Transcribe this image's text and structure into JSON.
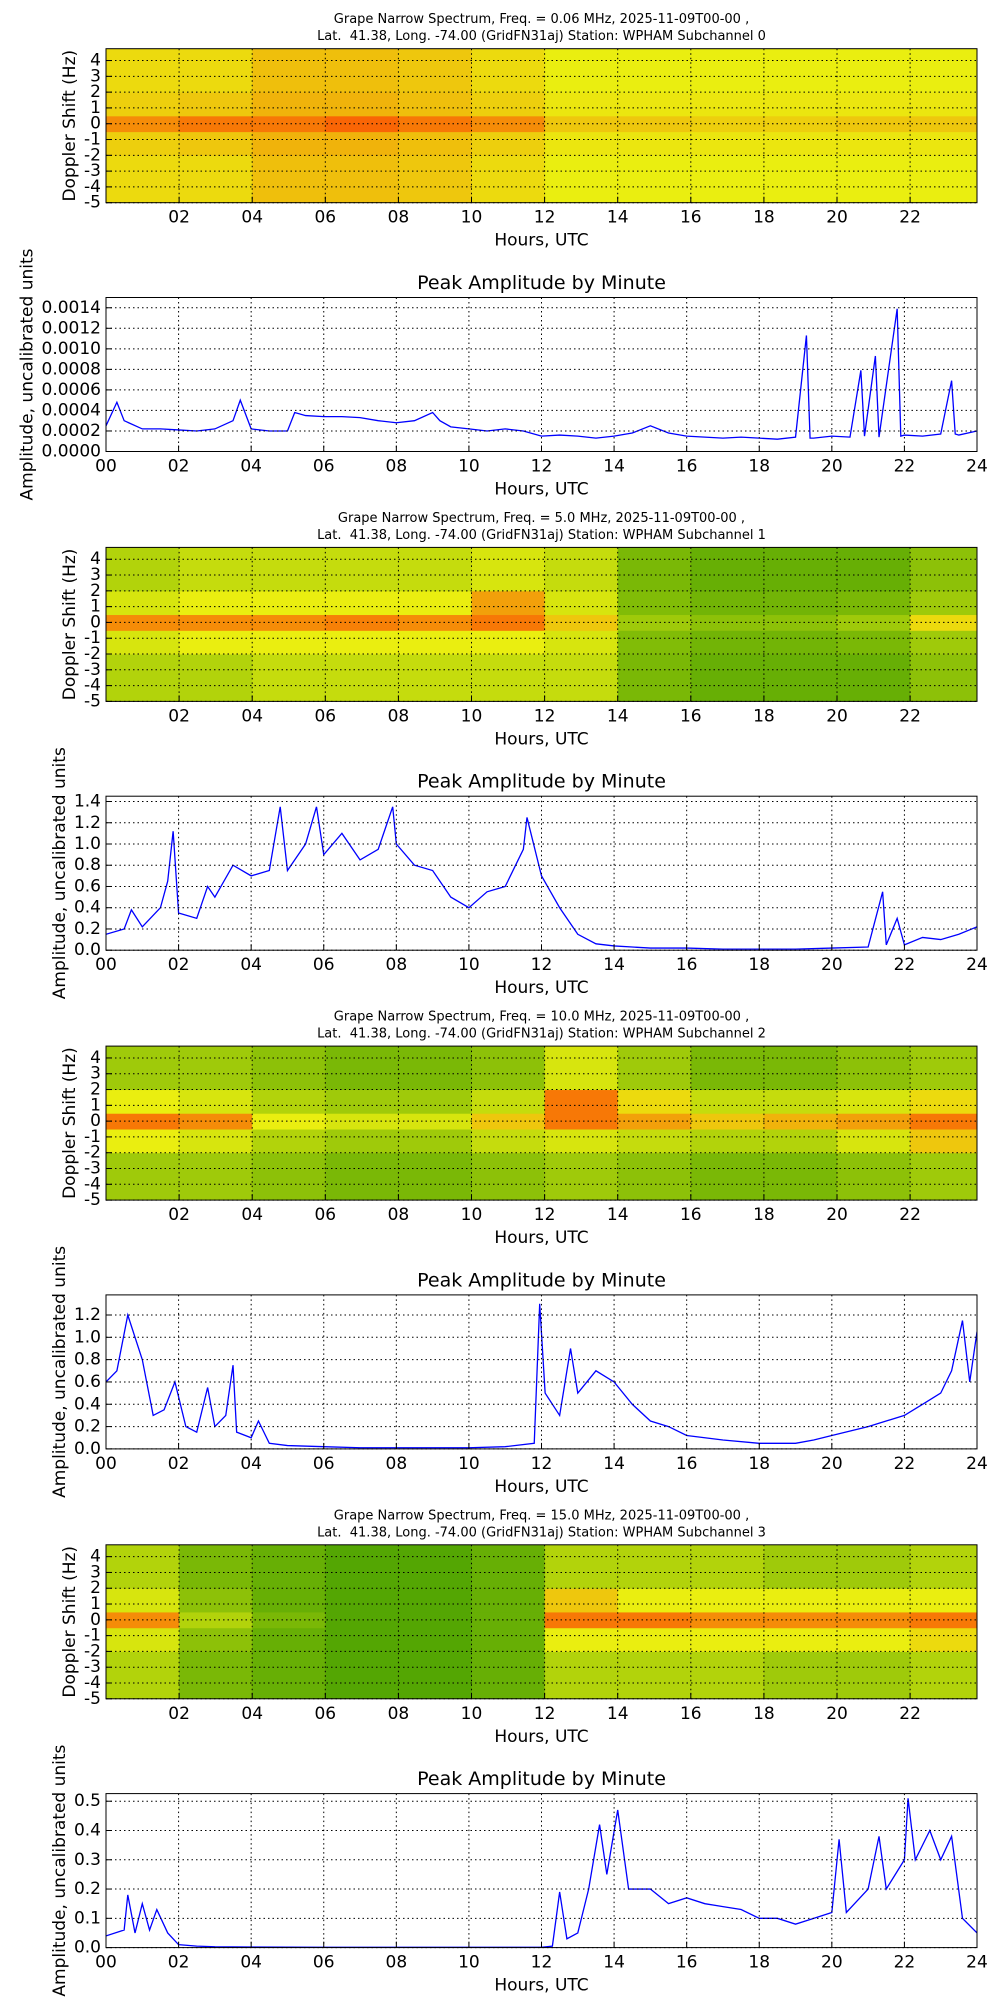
{
  "chart_data": [
    {
      "type": "heatmap",
      "title": "Grape Narrow Spectrum, Freq. = 0.06 MHz, 2025-11-09T00-00 ,",
      "subtitle": "Lat.  41.38, Long. -74.00 (GridFN31aj) Station: WPHAM Subchannel 0",
      "xlabel": "Hours, UTC",
      "ylabel": "Doppler Shift (Hz)",
      "xlim": [
        0,
        23.83
      ],
      "ylim": [
        -5,
        4.75
      ],
      "xticks": [
        {
          "value": 2,
          "label": "02"
        },
        {
          "value": 4,
          "label": "04"
        },
        {
          "value": 6,
          "label": "06"
        },
        {
          "value": 8,
          "label": "08"
        },
        10,
        12,
        14,
        16,
        18,
        20,
        22
      ],
      "yticks": [
        -5,
        -4,
        -3,
        -2,
        -1,
        0,
        1,
        2,
        3,
        4
      ],
      "grid": true,
      "colormap": [
        "#2f9400",
        "#eaee10",
        "#ff2a00"
      ],
      "x_edges": [
        0,
        2,
        4,
        6,
        8,
        10,
        12,
        14,
        16,
        18,
        20,
        22,
        23.83
      ],
      "y_edges": [
        -5,
        -2,
        -0.5,
        0.5,
        2,
        4.75
      ],
      "z": [
        [
          0.55,
          0.55,
          0.62,
          0.62,
          0.6,
          0.55,
          0.5,
          0.5,
          0.5,
          0.5,
          0.5,
          0.5
        ],
        [
          0.58,
          0.6,
          0.65,
          0.65,
          0.62,
          0.58,
          0.52,
          0.52,
          0.52,
          0.52,
          0.52,
          0.52
        ],
        [
          0.75,
          0.8,
          0.8,
          0.85,
          0.8,
          0.75,
          0.6,
          0.6,
          0.58,
          0.58,
          0.6,
          0.6
        ],
        [
          0.58,
          0.6,
          0.65,
          0.65,
          0.62,
          0.58,
          0.52,
          0.52,
          0.52,
          0.52,
          0.52,
          0.52
        ],
        [
          0.55,
          0.55,
          0.62,
          0.62,
          0.6,
          0.55,
          0.5,
          0.5,
          0.5,
          0.5,
          0.5,
          0.5
        ]
      ]
    },
    {
      "type": "line",
      "title": "Peak Amplitude by Minute",
      "xlabel": "Hours, UTC",
      "ylabel": "Amplitude, uncalibrated units",
      "color": "#0000ff",
      "xlim": [
        0,
        24
      ],
      "ylim": [
        0,
        0.0015
      ],
      "xticks": [
        {
          "value": 0,
          "label": "00"
        },
        {
          "value": 2,
          "label": "02"
        },
        {
          "value": 4,
          "label": "04"
        },
        {
          "value": 6,
          "label": "06"
        },
        {
          "value": 8,
          "label": "08"
        },
        10,
        12,
        14,
        16,
        18,
        20,
        22,
        24
      ],
      "yticks": [
        {
          "value": 0,
          "label": "0.0000"
        },
        {
          "value": 0.0002,
          "label": "0.0002"
        },
        {
          "value": 0.0004,
          "label": "0.0004"
        },
        {
          "value": 0.0006,
          "label": "0.0006"
        },
        {
          "value": 0.0008,
          "label": "0.0008"
        },
        {
          "value": 0.001,
          "label": "0.0010"
        },
        {
          "value": 0.0012,
          "label": "0.0012"
        },
        {
          "value": 0.0014,
          "label": "0.0014"
        }
      ],
      "grid": true,
      "x": [
        0,
        0.3,
        0.5,
        1,
        1.5,
        2,
        2.5,
        3,
        3.5,
        3.7,
        4,
        4.5,
        5,
        5.2,
        5.5,
        6,
        6.5,
        7,
        7.5,
        8,
        8.5,
        9,
        9.2,
        9.5,
        10,
        10.5,
        11,
        11.5,
        12,
        12.5,
        13,
        13.5,
        14,
        14.5,
        15,
        15.5,
        16,
        16.5,
        17,
        17.5,
        18,
        18.5,
        19,
        19.3,
        19.4,
        19.5,
        20,
        20.5,
        20.8,
        20.9,
        21.2,
        21.3,
        21.8,
        21.9,
        22,
        22.5,
        23,
        23.3,
        23.4,
        23.5,
        24
      ],
      "values": [
        0.00025,
        0.00048,
        0.0003,
        0.00022,
        0.00022,
        0.00021,
        0.0002,
        0.00022,
        0.0003,
        0.0005,
        0.00022,
        0.0002,
        0.0002,
        0.00038,
        0.00035,
        0.00034,
        0.00034,
        0.00033,
        0.0003,
        0.00028,
        0.0003,
        0.00038,
        0.0003,
        0.00024,
        0.00022,
        0.0002,
        0.00022,
        0.0002,
        0.00015,
        0.00016,
        0.00015,
        0.00013,
        0.00015,
        0.00018,
        0.00025,
        0.00018,
        0.00015,
        0.00014,
        0.00013,
        0.00014,
        0.00013,
        0.00012,
        0.00014,
        0.00113,
        0.00013,
        0.00013,
        0.00015,
        0.00014,
        0.00079,
        0.00015,
        0.00093,
        0.00014,
        0.00139,
        0.00015,
        0.00016,
        0.00015,
        0.00017,
        0.00069,
        0.00017,
        0.00016,
        0.0002
      ]
    },
    {
      "type": "heatmap",
      "title": "Grape Narrow Spectrum, Freq. = 5.0 MHz, 2025-11-09T00-00 ,",
      "subtitle": "Lat.  41.38, Long. -74.00 (GridFN31aj) Station: WPHAM Subchannel 1",
      "xlabel": "Hours, UTC",
      "ylabel": "Doppler Shift (Hz)",
      "xlim": [
        0,
        23.83
      ],
      "ylim": [
        -5,
        4.75
      ],
      "xticks": [
        {
          "value": 2,
          "label": "02"
        },
        {
          "value": 4,
          "label": "04"
        },
        {
          "value": 6,
          "label": "06"
        },
        {
          "value": 8,
          "label": "08"
        },
        10,
        12,
        14,
        16,
        18,
        20,
        22
      ],
      "yticks": [
        -5,
        -4,
        -3,
        -2,
        -1,
        0,
        1,
        2,
        3,
        4
      ],
      "grid": true,
      "colormap": [
        "#2f9400",
        "#eaee10",
        "#ff2a00"
      ],
      "x_edges": [
        0,
        2,
        4,
        6,
        8,
        10,
        12,
        14,
        16,
        18,
        20,
        22,
        23.83
      ],
      "y_edges": [
        -5,
        -2,
        -0.5,
        0.5,
        2,
        4.75
      ],
      "z": [
        [
          0.35,
          0.35,
          0.4,
          0.4,
          0.4,
          0.4,
          0.4,
          0.2,
          0.15,
          0.15,
          0.15,
          0.25
        ],
        [
          0.45,
          0.5,
          0.5,
          0.5,
          0.5,
          0.5,
          0.45,
          0.22,
          0.18,
          0.18,
          0.2,
          0.3
        ],
        [
          0.75,
          0.75,
          0.75,
          0.78,
          0.75,
          0.8,
          0.6,
          0.3,
          0.25,
          0.25,
          0.3,
          0.55
        ],
        [
          0.45,
          0.5,
          0.5,
          0.5,
          0.5,
          0.7,
          0.45,
          0.22,
          0.18,
          0.18,
          0.2,
          0.3
        ],
        [
          0.35,
          0.4,
          0.4,
          0.4,
          0.4,
          0.45,
          0.4,
          0.2,
          0.15,
          0.15,
          0.15,
          0.25
        ]
      ]
    },
    {
      "type": "line",
      "title": "Peak Amplitude by Minute",
      "xlabel": "Hours, UTC",
      "ylabel": "Amplitude, uncalibrated units",
      "color": "#0000ff",
      "xlim": [
        0,
        24
      ],
      "ylim": [
        0,
        1.45
      ],
      "xticks": [
        {
          "value": 0,
          "label": "00"
        },
        {
          "value": 2,
          "label": "02"
        },
        {
          "value": 4,
          "label": "04"
        },
        {
          "value": 6,
          "label": "06"
        },
        {
          "value": 8,
          "label": "08"
        },
        10,
        12,
        14,
        16,
        18,
        20,
        22,
        24
      ],
      "yticks": [
        {
          "value": 0,
          "label": "0.0"
        },
        0.2,
        0.4,
        0.6,
        0.8,
        {
          "value": 1,
          "label": "1.0"
        },
        1.2,
        1.4
      ],
      "grid": true,
      "x": [
        0,
        0.5,
        0.7,
        1,
        1.5,
        1.7,
        1.85,
        2,
        2.5,
        2.8,
        3,
        3.5,
        4,
        4.5,
        4.8,
        5,
        5.5,
        5.8,
        6,
        6.5,
        7,
        7.5,
        7.9,
        8,
        8.5,
        9,
        9.5,
        10,
        10.5,
        11,
        11.5,
        11.6,
        12,
        12.5,
        13,
        13.5,
        14,
        14.5,
        15,
        16,
        17,
        18,
        19,
        20,
        21,
        21.4,
        21.5,
        21.8,
        22,
        22.5,
        23,
        23.5,
        24
      ],
      "values": [
        0.15,
        0.2,
        0.38,
        0.22,
        0.4,
        0.65,
        1.12,
        0.35,
        0.3,
        0.6,
        0.5,
        0.8,
        0.7,
        0.75,
        1.35,
        0.75,
        1.0,
        1.35,
        0.9,
        1.1,
        0.85,
        0.95,
        1.35,
        1.0,
        0.8,
        0.75,
        0.5,
        0.4,
        0.55,
        0.6,
        0.95,
        1.25,
        0.7,
        0.4,
        0.15,
        0.06,
        0.04,
        0.03,
        0.02,
        0.02,
        0.01,
        0.01,
        0.01,
        0.02,
        0.03,
        0.55,
        0.05,
        0.3,
        0.05,
        0.12,
        0.1,
        0.15,
        0.22
      ]
    },
    {
      "type": "heatmap",
      "title": "Grape Narrow Spectrum, Freq. = 10.0 MHz, 2025-11-09T00-00 ,",
      "subtitle": "Lat.  41.38, Long. -74.00 (GridFN31aj) Station: WPHAM Subchannel 2",
      "xlabel": "Hours, UTC",
      "ylabel": "Doppler Shift (Hz)",
      "xlim": [
        0,
        23.83
      ],
      "ylim": [
        -5,
        4.75
      ],
      "xticks": [
        {
          "value": 2,
          "label": "02"
        },
        {
          "value": 4,
          "label": "04"
        },
        {
          "value": 6,
          "label": "06"
        },
        {
          "value": 8,
          "label": "08"
        },
        10,
        12,
        14,
        16,
        18,
        20,
        22
      ],
      "yticks": [
        -5,
        -4,
        -3,
        -2,
        -1,
        0,
        1,
        2,
        3,
        4
      ],
      "grid": true,
      "colormap": [
        "#2f9400",
        "#eaee10",
        "#ff2a00"
      ],
      "x_edges": [
        0,
        2,
        4,
        6,
        8,
        10,
        12,
        14,
        16,
        18,
        20,
        22,
        23.83
      ],
      "y_edges": [
        -5,
        -2,
        -0.5,
        0.5,
        2,
        4.75
      ],
      "z": [
        [
          0.3,
          0.3,
          0.25,
          0.2,
          0.2,
          0.25,
          0.3,
          0.25,
          0.2,
          0.2,
          0.25,
          0.3
        ],
        [
          0.5,
          0.45,
          0.35,
          0.3,
          0.3,
          0.4,
          0.45,
          0.4,
          0.35,
          0.35,
          0.45,
          0.6
        ],
        [
          0.8,
          0.75,
          0.5,
          0.45,
          0.45,
          0.6,
          0.8,
          0.7,
          0.6,
          0.65,
          0.7,
          0.8
        ],
        [
          0.5,
          0.45,
          0.35,
          0.3,
          0.3,
          0.4,
          0.8,
          0.55,
          0.4,
          0.4,
          0.45,
          0.55
        ],
        [
          0.3,
          0.3,
          0.25,
          0.2,
          0.2,
          0.25,
          0.45,
          0.3,
          0.2,
          0.2,
          0.25,
          0.3
        ]
      ]
    },
    {
      "type": "line",
      "title": "Peak Amplitude by Minute",
      "xlabel": "Hours, UTC",
      "ylabel": "Amplitude, uncalibrated units",
      "color": "#0000ff",
      "xlim": [
        0,
        24
      ],
      "ylim": [
        0,
        1.38
      ],
      "xticks": [
        {
          "value": 0,
          "label": "00"
        },
        {
          "value": 2,
          "label": "02"
        },
        {
          "value": 4,
          "label": "04"
        },
        {
          "value": 6,
          "label": "06"
        },
        {
          "value": 8,
          "label": "08"
        },
        10,
        12,
        14,
        16,
        18,
        20,
        22,
        24
      ],
      "yticks": [
        {
          "value": 0,
          "label": "0.0"
        },
        0.2,
        0.4,
        0.6,
        0.8,
        {
          "value": 1,
          "label": "1.0"
        },
        1.2
      ],
      "grid": true,
      "x": [
        0,
        0.3,
        0.6,
        1,
        1.3,
        1.6,
        1.9,
        2.2,
        2.5,
        2.8,
        3,
        3.3,
        3.5,
        3.6,
        4,
        4.2,
        4.5,
        5,
        6,
        7,
        8,
        9,
        10,
        11,
        11.8,
        11.95,
        12.1,
        12.5,
        12.8,
        13,
        13.5,
        14,
        14.5,
        15,
        15.5,
        16,
        17,
        18,
        19,
        19.5,
        20,
        21,
        22,
        22.5,
        23,
        23.3,
        23.6,
        23.8,
        24
      ],
      "values": [
        0.6,
        0.7,
        1.2,
        0.8,
        0.3,
        0.35,
        0.6,
        0.2,
        0.15,
        0.55,
        0.2,
        0.3,
        0.75,
        0.15,
        0.1,
        0.25,
        0.05,
        0.03,
        0.02,
        0.01,
        0.01,
        0.01,
        0.01,
        0.02,
        0.05,
        1.3,
        0.5,
        0.3,
        0.9,
        0.5,
        0.7,
        0.6,
        0.4,
        0.25,
        0.2,
        0.12,
        0.08,
        0.05,
        0.05,
        0.08,
        0.12,
        0.2,
        0.3,
        0.4,
        0.5,
        0.7,
        1.15,
        0.6,
        1.05
      ]
    },
    {
      "type": "heatmap",
      "title": "Grape Narrow Spectrum, Freq. = 15.0 MHz, 2025-11-09T00-00 ,",
      "subtitle": "Lat.  41.38, Long. -74.00 (GridFN31aj) Station: WPHAM Subchannel 3",
      "xlabel": "Hours, UTC",
      "ylabel": "Doppler Shift (Hz)",
      "xlim": [
        0,
        23.83
      ],
      "ylim": [
        -5,
        4.75
      ],
      "xticks": [
        {
          "value": 2,
          "label": "02"
        },
        {
          "value": 4,
          "label": "04"
        },
        {
          "value": 6,
          "label": "06"
        },
        {
          "value": 8,
          "label": "08"
        },
        10,
        12,
        14,
        16,
        18,
        20,
        22
      ],
      "yticks": [
        -5,
        -4,
        -3,
        -2,
        -1,
        0,
        1,
        2,
        3,
        4
      ],
      "grid": true,
      "colormap": [
        "#2f9400",
        "#eaee10",
        "#ff2a00"
      ],
      "x_edges": [
        0,
        2,
        4,
        6,
        8,
        10,
        12,
        14,
        16,
        18,
        20,
        22,
        23.83
      ],
      "y_edges": [
        -5,
        -2,
        -0.5,
        0.5,
        2,
        4.75
      ],
      "z": [
        [
          0.35,
          0.2,
          0.15,
          0.1,
          0.1,
          0.15,
          0.35,
          0.35,
          0.35,
          0.3,
          0.3,
          0.35
        ],
        [
          0.45,
          0.25,
          0.15,
          0.1,
          0.1,
          0.15,
          0.5,
          0.5,
          0.5,
          0.5,
          0.5,
          0.55
        ],
        [
          0.75,
          0.35,
          0.2,
          0.1,
          0.1,
          0.15,
          0.8,
          0.8,
          0.75,
          0.75,
          0.75,
          0.8
        ],
        [
          0.45,
          0.25,
          0.15,
          0.1,
          0.1,
          0.15,
          0.6,
          0.5,
          0.5,
          0.5,
          0.5,
          0.5
        ],
        [
          0.35,
          0.2,
          0.15,
          0.1,
          0.1,
          0.15,
          0.35,
          0.35,
          0.35,
          0.3,
          0.3,
          0.35
        ]
      ]
    },
    {
      "type": "line",
      "title": "Peak Amplitude by Minute",
      "xlabel": "Hours, UTC",
      "ylabel": "Amplitude, uncalibrated units",
      "color": "#0000ff",
      "xlim": [
        0,
        24
      ],
      "ylim": [
        0,
        0.526
      ],
      "xticks": [
        {
          "value": 0,
          "label": "00"
        },
        {
          "value": 2,
          "label": "02"
        },
        {
          "value": 4,
          "label": "04"
        },
        {
          "value": 6,
          "label": "06"
        },
        {
          "value": 8,
          "label": "08"
        },
        10,
        12,
        14,
        16,
        18,
        20,
        22,
        24
      ],
      "yticks": [
        {
          "value": 0,
          "label": "0.0"
        },
        0.1,
        0.2,
        0.3,
        0.4,
        0.5
      ],
      "grid": true,
      "x": [
        0,
        0.5,
        0.6,
        0.8,
        1,
        1.2,
        1.4,
        1.7,
        2,
        2.5,
        3,
        4,
        6,
        8,
        10,
        12,
        12.3,
        12.5,
        12.7,
        13,
        13.3,
        13.6,
        13.8,
        14.1,
        14.4,
        15,
        15.5,
        16,
        16.5,
        17,
        17.5,
        18,
        18.5,
        19,
        19.5,
        20,
        20.2,
        20.4,
        21,
        21.3,
        21.5,
        22,
        22.1,
        22.3,
        22.7,
        23,
        23.3,
        23.6,
        24
      ],
      "values": [
        0.04,
        0.06,
        0.18,
        0.05,
        0.15,
        0.06,
        0.13,
        0.05,
        0.01,
        0.005,
        0.003,
        0.002,
        0.001,
        0.001,
        0.001,
        0.001,
        0.005,
        0.19,
        0.03,
        0.05,
        0.2,
        0.42,
        0.25,
        0.47,
        0.2,
        0.2,
        0.15,
        0.17,
        0.15,
        0.14,
        0.13,
        0.1,
        0.1,
        0.08,
        0.1,
        0.12,
        0.37,
        0.12,
        0.2,
        0.38,
        0.2,
        0.3,
        0.51,
        0.3,
        0.4,
        0.3,
        0.38,
        0.1,
        0.05
      ]
    }
  ]
}
